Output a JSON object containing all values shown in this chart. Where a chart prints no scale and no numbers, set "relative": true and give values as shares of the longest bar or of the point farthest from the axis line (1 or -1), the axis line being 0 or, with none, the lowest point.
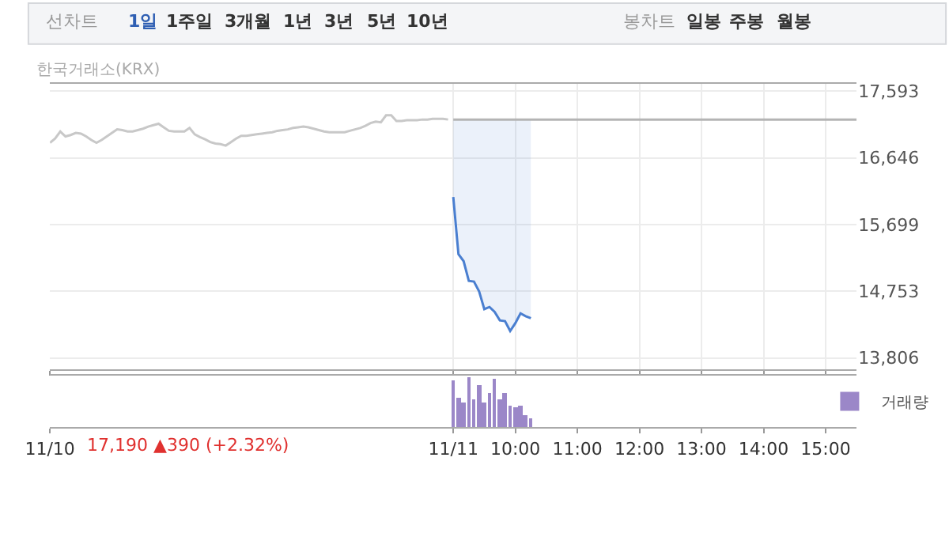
{
  "chart_data": [
    {
      "type": "line",
      "annotations": [
        "한국거래소(KRX)",
        "선차트",
        "1일",
        "1주일",
        "3개월",
        "1년",
        "3년",
        "5년",
        "10년",
        "봉차트",
        "일봉",
        "주봉",
        "월봉"
      ],
      "categories": [
        null,
        null,
        null,
        null,
        null,
        null,
        null,
        null,
        null,
        null,
        null,
        null,
        null,
        null,
        null,
        null,
        null,
        null,
        null,
        null,
        null,
        null,
        null,
        null,
        null,
        null,
        null,
        null,
        null,
        null,
        null,
        null,
        null,
        null,
        null,
        null,
        null,
        null,
        null,
        null,
        null,
        null,
        null,
        null,
        null,
        null,
        null,
        null,
        null,
        null,
        null,
        null,
        null,
        null,
        null,
        null,
        null,
        null,
        null,
        null,
        null,
        null,
        null,
        null,
        null,
        null,
        null,
        null,
        null,
        null,
        null,
        null,
        null,
        null,
        null,
        null,
        null,
        null,
        null,
        null,
        null,
        null,
        null,
        null,
        null,
        null,
        null,
        null,
        null,
        null,
        null,
        null,
        null,
        null,
        null,
        null,
        null,
        null,
        null,
        null,
        null,
        null,
        null,
        null,
        null,
        null,
        null,
        null,
        null,
        null,
        null,
        null,
        null,
        null,
        null,
        null,
        null,
        null,
        null,
        null,
        null,
        null,
        null,
        null,
        null,
        null,
        null,
        null,
        null,
        null,
        null,
        null,
        null,
        null,
        null,
        null,
        null,
        null,
        null,
        null,
        null,
        null,
        null,
        null,
        null,
        null,
        null,
        null,
        null,
        null,
        null,
        null,
        null,
        null,
        null,
        null,
        null
      ],
      "ylim": [
        13650,
        17700
      ],
      "yticks": [
        {
          "value": 13806,
          "label": "13,806"
        },
        {
          "value": 14753,
          "label": "14,753"
        },
        {
          "value": 15699,
          "label": "15,699"
        },
        {
          "value": 16646,
          "label": "16,646"
        },
        {
          "value": 17593,
          "label": "17,593"
        }
      ],
      "grid": true,
      "tick_labels": "y",
      "legend": false,
      "series": [
        {
          "color": "#c8c8c8",
          "values": [
            16860,
            16920,
            17020,
            16950,
            16970,
            17000,
            16990,
            16950,
            16900,
            16860,
            16900,
            16950,
            17000,
            17050,
            17040,
            17020,
            17020,
            17040,
            17060,
            17090,
            17110,
            17130,
            17080,
            17030,
            17020,
            17020,
            17020,
            17070,
            16980,
            16940,
            16910,
            16870,
            16850,
            16840,
            16820,
            16870,
            16920,
            16960,
            16960,
            16970,
            16980,
            16990,
            17000,
            17010,
            17030,
            17040,
            17050,
            17070,
            17080,
            17090,
            17080,
            17060,
            17040,
            17020,
            17010,
            17010,
            17010,
            17010,
            17030,
            17050,
            17070,
            17100,
            17140,
            17160,
            17150,
            17250,
            17250,
            17170,
            17170,
            17180,
            17180,
            17180,
            17190,
            17190,
            17200,
            17200,
            17200,
            17190,
            null,
            null,
            null,
            null,
            null,
            null,
            null,
            null,
            null,
            null,
            null,
            null,
            null,
            null,
            null,
            null,
            null,
            null,
            null,
            null,
            null,
            null,
            null,
            null,
            null,
            null,
            null,
            null,
            null,
            null,
            null,
            null,
            null,
            null,
            null,
            null,
            null,
            null,
            null,
            null,
            null,
            null,
            null,
            null,
            null,
            null,
            null,
            null,
            null,
            null,
            null,
            null,
            null,
            null,
            null,
            null,
            null,
            null,
            null,
            null,
            null,
            null,
            null,
            null,
            null,
            null,
            null,
            null,
            null,
            null,
            null,
            null,
            null,
            null,
            null,
            null,
            null,
            null,
            null
          ]
        },
        {
          "color": "#4a7fd0",
          "values": [
            null,
            null,
            null,
            null,
            null,
            null,
            null,
            null,
            null,
            null,
            null,
            null,
            null,
            null,
            null,
            null,
            null,
            null,
            null,
            null,
            null,
            null,
            null,
            null,
            null,
            null,
            null,
            null,
            null,
            null,
            null,
            null,
            null,
            null,
            null,
            null,
            null,
            null,
            null,
            null,
            null,
            null,
            null,
            null,
            null,
            null,
            null,
            null,
            null,
            null,
            null,
            null,
            null,
            null,
            null,
            null,
            null,
            null,
            null,
            null,
            null,
            null,
            null,
            null,
            null,
            null,
            null,
            null,
            null,
            null,
            null,
            null,
            null,
            null,
            null,
            null,
            null,
            null,
            16090,
            15280,
            15180,
            14900,
            14890,
            14750,
            14500,
            14530,
            14460,
            14340,
            14330,
            14190,
            14300,
            14440,
            14400,
            14370,
            null,
            null,
            null,
            null,
            null,
            null,
            null,
            null,
            null,
            null,
            null,
            null,
            null,
            null,
            null,
            null,
            null,
            null,
            null,
            null,
            null,
            null,
            null,
            null,
            null,
            null,
            null,
            null,
            null,
            null,
            null,
            null,
            null,
            null,
            null,
            null,
            null,
            null,
            null,
            null,
            null,
            null,
            null,
            null,
            null,
            null,
            null,
            null,
            null,
            null,
            null,
            null,
            null,
            null,
            null,
            null,
            null,
            null,
            null,
            null,
            null,
            null,
            null
          ],
          "lower": [
            null,
            null,
            null,
            null,
            null,
            null,
            null,
            null,
            null,
            null,
            null,
            null,
            null,
            null,
            null,
            null,
            null,
            null,
            null,
            null,
            null,
            null,
            null,
            null,
            null,
            null,
            null,
            null,
            null,
            null,
            null,
            null,
            null,
            null,
            null,
            null,
            null,
            null,
            null,
            null,
            null,
            null,
            null,
            null,
            null,
            null,
            null,
            null,
            null,
            null,
            null,
            null,
            null,
            null,
            null,
            null,
            null,
            null,
            null,
            null,
            null,
            null,
            null,
            null,
            null,
            null,
            null,
            null,
            null,
            null,
            null,
            null,
            null,
            null,
            null,
            null,
            null,
            null,
            16090,
            15280,
            15180,
            14900,
            14890,
            14750,
            14500,
            14530,
            14460,
            14340,
            14330,
            14190,
            14300,
            14440,
            14400,
            14370,
            null,
            null,
            null,
            null,
            null,
            null,
            null,
            null,
            null,
            null,
            null,
            null,
            null,
            null,
            null,
            null,
            null,
            null,
            null,
            null,
            null,
            null,
            null,
            null,
            null,
            null,
            null,
            null,
            null,
            null,
            null,
            null,
            null,
            null,
            null,
            null,
            null,
            null,
            null,
            null,
            null,
            null,
            null,
            null,
            null,
            null,
            null,
            null,
            null,
            null,
            null,
            null,
            null,
            null,
            null,
            null,
            null,
            null,
            null,
            null,
            null,
            null,
            null
          ],
          "upper": [
            null,
            null,
            null,
            null,
            null,
            null,
            null,
            null,
            null,
            null,
            null,
            null,
            null,
            null,
            null,
            null,
            null,
            null,
            null,
            null,
            null,
            null,
            null,
            null,
            null,
            null,
            null,
            null,
            null,
            null,
            null,
            null,
            null,
            null,
            null,
            null,
            null,
            null,
            null,
            null,
            null,
            null,
            null,
            null,
            null,
            null,
            null,
            null,
            null,
            null,
            null,
            null,
            null,
            null,
            null,
            null,
            null,
            null,
            null,
            null,
            null,
            null,
            null,
            null,
            null,
            null,
            null,
            null,
            null,
            null,
            null,
            null,
            null,
            null,
            null,
            null,
            null,
            null,
            17190,
            17190,
            17190,
            17190,
            17190,
            17190,
            17190,
            17190,
            17190,
            17190,
            17190,
            17190,
            17190,
            17190,
            17190,
            17190,
            null,
            null,
            null,
            null,
            null,
            null,
            null,
            null,
            null,
            null,
            null,
            null,
            null,
            null,
            null,
            null,
            null,
            null,
            null,
            null,
            null,
            null,
            null,
            null,
            null,
            null,
            null,
            null,
            null,
            null,
            null,
            null,
            null,
            null,
            null,
            null,
            null,
            null,
            null,
            null,
            null,
            null,
            null,
            null,
            null,
            null,
            null,
            null,
            null,
            null,
            null,
            null,
            null,
            null,
            null,
            null,
            null,
            null,
            null,
            null,
            null,
            null,
            null
          ]
        },
        {
          "color": "#b4b4b4",
          "values": [
            null,
            null,
            null,
            null,
            null,
            null,
            null,
            null,
            null,
            null,
            null,
            null,
            null,
            null,
            null,
            null,
            null,
            null,
            null,
            null,
            null,
            null,
            null,
            null,
            null,
            null,
            null,
            null,
            null,
            null,
            null,
            null,
            null,
            null,
            null,
            null,
            null,
            null,
            null,
            null,
            null,
            null,
            null,
            null,
            null,
            null,
            null,
            null,
            null,
            null,
            null,
            null,
            null,
            null,
            null,
            null,
            null,
            null,
            null,
            null,
            null,
            null,
            null,
            null,
            null,
            null,
            null,
            null,
            null,
            null,
            null,
            null,
            null,
            null,
            null,
            null,
            null,
            null,
            17190,
            17190,
            17190,
            17190,
            17190,
            17190,
            17190,
            17190,
            17190,
            17190,
            17190,
            17190,
            17190,
            17190,
            17190,
            17190,
            17190,
            17190,
            17190,
            17190,
            17190,
            17190,
            17190,
            17190,
            17190,
            17190,
            17190,
            17190,
            17190,
            17190,
            17190,
            17190,
            17190,
            17190,
            17190,
            17190,
            17190,
            17190,
            17190,
            17190,
            17190,
            17190,
            17190,
            17190,
            17190,
            17190,
            17190,
            17190,
            17190,
            17190,
            17190,
            17190,
            17190,
            17190,
            17190,
            17190,
            17190,
            17190,
            17190,
            17190,
            17190,
            17190,
            17190,
            17190,
            17190,
            17190,
            17190,
            17190,
            17190,
            17190,
            17190,
            17190,
            17190,
            17190,
            17190,
            17190,
            17190,
            17190,
            17190
          ]
        }
      ]
    },
    {
      "type": "bar",
      "relative": true,
      "annotations": [
        "17,190 ▲390 (+2.32%)"
      ],
      "categories": [
        "11/10",
        null,
        null,
        null,
        null,
        null,
        null,
        null,
        null,
        null,
        null,
        null,
        null,
        null,
        null,
        null,
        null,
        null,
        null,
        null,
        null,
        null,
        null,
        null,
        null,
        null,
        null,
        null,
        null,
        null,
        null,
        null,
        null,
        null,
        null,
        null,
        null,
        null,
        null,
        null,
        null,
        null,
        null,
        null,
        null,
        null,
        null,
        null,
        null,
        null,
        null,
        null,
        null,
        null,
        null,
        null,
        null,
        null,
        null,
        null,
        null,
        null,
        null,
        null,
        null,
        null,
        null,
        null,
        null,
        null,
        null,
        null,
        null,
        null,
        null,
        null,
        null,
        null,
        "11/11",
        null,
        null,
        null,
        null,
        null,
        null,
        null,
        null,
        null,
        null,
        null,
        "10:00",
        null,
        null,
        null,
        null,
        null,
        null,
        null,
        null,
        null,
        null,
        null,
        "11:00",
        null,
        null,
        null,
        null,
        null,
        null,
        null,
        null,
        null,
        null,
        null,
        "12:00",
        null,
        null,
        null,
        null,
        null,
        null,
        null,
        null,
        null,
        null,
        null,
        "13:00",
        null,
        null,
        null,
        null,
        null,
        null,
        null,
        null,
        null,
        null,
        null,
        "14:00",
        null,
        null,
        null,
        null,
        null,
        null,
        null,
        null,
        null,
        null,
        null,
        "15:00",
        null,
        null,
        null,
        null,
        null,
        null
      ],
      "tick_labels": "x",
      "legend": "top right",
      "series": [
        {
          "name": "거래량",
          "color": "#9b87c8",
          "values": [
            null,
            null,
            null,
            null,
            null,
            null,
            null,
            null,
            null,
            null,
            null,
            null,
            null,
            null,
            null,
            null,
            null,
            null,
            null,
            null,
            null,
            null,
            null,
            null,
            null,
            null,
            null,
            null,
            null,
            null,
            null,
            null,
            null,
            null,
            null,
            null,
            null,
            null,
            null,
            null,
            null,
            null,
            null,
            null,
            null,
            null,
            null,
            null,
            null,
            null,
            null,
            null,
            null,
            null,
            null,
            null,
            null,
            null,
            null,
            null,
            null,
            null,
            null,
            null,
            null,
            null,
            null,
            null,
            null,
            null,
            null,
            null,
            null,
            null,
            null,
            null,
            null,
            null,
            0.93,
            0.6,
            0.5,
            1,
            0.55,
            0.85,
            0.5,
            0.7,
            0.97,
            0.55,
            0.7,
            0.45,
            0.4,
            0.45,
            0.25,
            0.2,
            null,
            null,
            null,
            null,
            null,
            null,
            null,
            null,
            null,
            null,
            null,
            null,
            null,
            null,
            null,
            null,
            null,
            null,
            null,
            null,
            null,
            null,
            null,
            null,
            null,
            null,
            null,
            null,
            null,
            null,
            null,
            null,
            null,
            null,
            null,
            null,
            null,
            null,
            null,
            null,
            null,
            null,
            null,
            null,
            null,
            null,
            null,
            null,
            null,
            null,
            null,
            null,
            null,
            null,
            null,
            null,
            null,
            null,
            null,
            null,
            null,
            null,
            null
          ]
        }
      ]
    }
  ]
}
